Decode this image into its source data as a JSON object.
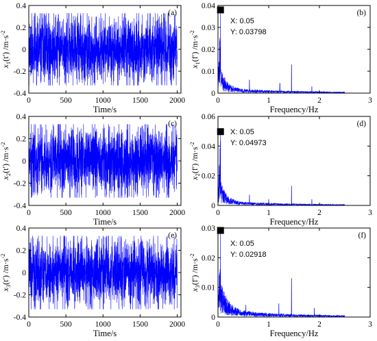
{
  "colors": {
    "series": "#0000ff",
    "axis": "#000000",
    "datatip_marker": "#000000",
    "background": "#ffffff"
  },
  "chart_data": [
    {
      "id": "a",
      "type": "line",
      "panel_label": "(a)",
      "xlabel": "Time/s",
      "ylabel_base": "x",
      "ylabel_sub": "1",
      "ylabel_arg": "(t′)",
      "ylabel_unit": " /m·s",
      "ylabel_exp": "-2",
      "xlim": [
        0,
        2050
      ],
      "ylim": [
        -0.4,
        0.4
      ],
      "xticks": [
        0,
        500,
        1000,
        1500,
        2000
      ],
      "xticklabels": [
        "0",
        "500",
        "1000",
        "1500",
        "2000"
      ],
      "yticks": [
        -0.4,
        -0.2,
        0,
        0.2,
        0.4
      ],
      "yticklabels": [
        "-0.4",
        "-0.2",
        "0",
        "0.2",
        "0.4"
      ],
      "series": [
        {
          "kind": "noise",
          "n": 2000,
          "x_start": 0,
          "x_end": 2000,
          "amp": 0.15,
          "clip": 0.33,
          "seed": 11
        }
      ],
      "datatip": null
    },
    {
      "id": "b",
      "type": "line",
      "panel_label": "(b)",
      "xlabel": "Frequency/Hz",
      "ylabel_base": "x",
      "ylabel_sub": "1",
      "ylabel_arg": "(f′)",
      "ylabel_unit": " /m·s",
      "ylabel_exp": "-2",
      "xlim": [
        0,
        3
      ],
      "ylim": [
        0,
        0.04
      ],
      "xticks": [
        0,
        1,
        2,
        3
      ],
      "xticklabels": [
        "0",
        "1",
        "2",
        "3"
      ],
      "yticks": [
        0,
        0.01,
        0.02,
        0.03,
        0.04
      ],
      "yticklabels": [
        "0",
        "0.01",
        "0.02",
        "0.03",
        "0.04"
      ],
      "series": [
        {
          "kind": "spectrum",
          "n": 1200,
          "x_end": 2.5,
          "peak_x": 0.05,
          "peak_y": 0.03798,
          "decay": 0.01,
          "tau": 0.12,
          "floor": 0.0025,
          "spikes": [
            [
              0.62,
              0.006
            ],
            [
              1.22,
              0.0045
            ],
            [
              1.45,
              0.013
            ],
            [
              1.85,
              0.003
            ]
          ],
          "seed": 21
        }
      ],
      "datatip": {
        "x": 0.05,
        "y": 0.03798,
        "label_x": "X: 0.05",
        "label_y": "Y: 0.03798"
      }
    },
    {
      "id": "c",
      "type": "line",
      "panel_label": "(c)",
      "xlabel": "Time/s",
      "ylabel_base": "x",
      "ylabel_sub": "2",
      "ylabel_arg": "(t′)",
      "ylabel_unit": " /m·s",
      "ylabel_exp": "-2",
      "xlim": [
        0,
        2050
      ],
      "ylim": [
        -0.4,
        0.4
      ],
      "xticks": [
        0,
        500,
        1000,
        1500,
        2000
      ],
      "xticklabels": [
        "0",
        "500",
        "1000",
        "1500",
        "2000"
      ],
      "yticks": [
        -0.4,
        -0.2,
        0,
        0.2,
        0.4
      ],
      "yticklabels": [
        "-0.4",
        "-0.2",
        "0",
        "0.2",
        "0.4"
      ],
      "series": [
        {
          "kind": "noise",
          "n": 2000,
          "x_start": 0,
          "x_end": 2000,
          "amp": 0.15,
          "clip": 0.33,
          "seed": 33
        }
      ],
      "datatip": null
    },
    {
      "id": "d",
      "type": "line",
      "panel_label": "(d)",
      "xlabel": "Frequency/Hz",
      "ylabel_base": "x",
      "ylabel_sub": "2",
      "ylabel_arg": "(f′)",
      "ylabel_unit": " /m·s",
      "ylabel_exp": "-2",
      "xlim": [
        0,
        3
      ],
      "ylim": [
        0,
        0.06
      ],
      "xticks": [
        0,
        1,
        2,
        3
      ],
      "xticklabels": [
        "0",
        "1",
        "2",
        "3"
      ],
      "yticks": [
        0,
        0.02,
        0.04,
        0.06
      ],
      "yticklabels": [
        "0",
        "0.02",
        "0.04",
        "0.06"
      ],
      "series": [
        {
          "kind": "spectrum",
          "n": 1200,
          "x_end": 2.5,
          "peak_x": 0.05,
          "peak_y": 0.04973,
          "decay": 0.014,
          "tau": 0.12,
          "floor": 0.003,
          "spikes": [
            [
              0.62,
              0.007
            ],
            [
              1.0,
              0.004
            ],
            [
              1.45,
              0.013
            ],
            [
              1.85,
              0.004
            ]
          ],
          "seed": 43
        }
      ],
      "datatip": {
        "x": 0.05,
        "y": 0.04973,
        "label_x": "X: 0.05",
        "label_y": "Y: 0.04973"
      }
    },
    {
      "id": "e",
      "type": "line",
      "panel_label": "(e)",
      "xlabel": "Time/s",
      "ylabel_base": "x",
      "ylabel_sub": "3",
      "ylabel_arg": "(t′)",
      "ylabel_unit": " /m·s",
      "ylabel_exp": "-2",
      "xlim": [
        0,
        2050
      ],
      "ylim": [
        -0.4,
        0.4
      ],
      "xticks": [
        0,
        500,
        1000,
        1500,
        2000
      ],
      "xticklabels": [
        "0",
        "500",
        "1000",
        "1500",
        "2000"
      ],
      "yticks": [
        -0.4,
        -0.2,
        0,
        0.2,
        0.4
      ],
      "yticklabels": [
        "-0.4",
        "-0.2",
        "0",
        "0.2",
        "0.4"
      ],
      "series": [
        {
          "kind": "noise",
          "n": 2000,
          "x_start": 0,
          "x_end": 2000,
          "amp": 0.15,
          "clip": 0.33,
          "seed": 55
        }
      ],
      "datatip": null
    },
    {
      "id": "f",
      "type": "line",
      "panel_label": "(f)",
      "xlabel": "Frequency/Hz",
      "ylabel_base": "x",
      "ylabel_sub": "3",
      "ylabel_arg": "(f′)",
      "ylabel_unit": " /m·s",
      "ylabel_exp": "-2",
      "xlim": [
        0,
        3
      ],
      "ylim": [
        0,
        0.03
      ],
      "xticks": [
        0,
        1,
        2,
        3
      ],
      "xticklabels": [
        "0",
        "1",
        "2",
        "3"
      ],
      "yticks": [
        0,
        0.01,
        0.02,
        0.03
      ],
      "yticklabels": [
        "0",
        "0.01",
        "0.02",
        "0.03"
      ],
      "series": [
        {
          "kind": "spectrum",
          "n": 1200,
          "x_end": 2.5,
          "peak_x": 0.05,
          "peak_y": 0.02918,
          "decay": 0.01,
          "tau": 0.15,
          "floor": 0.0025,
          "spikes": [
            [
              0.55,
              0.004
            ],
            [
              1.2,
              0.0045
            ],
            [
              1.45,
              0.013
            ],
            [
              1.9,
              0.003
            ]
          ],
          "seed": 67
        }
      ],
      "datatip": {
        "x": 0.05,
        "y": 0.02918,
        "label_x": "X: 0.05",
        "label_y": "Y: 0.02918"
      }
    }
  ]
}
